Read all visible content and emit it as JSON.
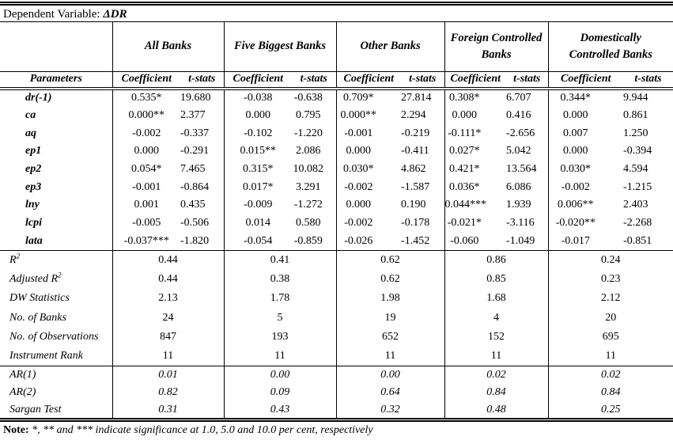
{
  "table": {
    "dependent_variable_label": "Dependent Variable:",
    "dependent_variable": "ΔDR",
    "groups": [
      {
        "label": "All Banks"
      },
      {
        "label": "Five Biggest Banks"
      },
      {
        "label": "Other Banks"
      },
      {
        "label": "Foreign Controlled\nBanks"
      },
      {
        "label": "Domestically\nControlled Banks"
      }
    ],
    "param_header": "Parameters",
    "coef_header": "Coefficient",
    "tstat_header": "t-stats",
    "rows": [
      {
        "param": "dr(-1)",
        "cells": [
          "0.535*",
          "19.680",
          "-0.038",
          "-0.638",
          "0.709*",
          "27.814",
          "0.308*",
          "6.707",
          "0.344*",
          "9.944"
        ]
      },
      {
        "param": "ca",
        "cells": [
          "0.000**",
          "2.377",
          "0.000",
          "0.795",
          "0.000**",
          "2.294",
          "0.000",
          "0.416",
          "0.000",
          "0.861"
        ]
      },
      {
        "param": "aq",
        "cells": [
          "-0.002",
          "-0.337",
          "-0.102",
          "-1.220",
          "-0.001",
          "-0.219",
          "-0.111*",
          "-2.656",
          "0.007",
          "1.250"
        ]
      },
      {
        "param": "ep1",
        "cells": [
          "0.000",
          "-0.291",
          "0.015**",
          "2.086",
          "0.000",
          "-0.411",
          "0.027*",
          "5.042",
          "0.000",
          "-0.394"
        ]
      },
      {
        "param": "ep2",
        "cells": [
          "0.054*",
          "7.465",
          "0.315*",
          "10.082",
          "0.030*",
          "4.862",
          "0.421*",
          "13.564",
          "0.030*",
          "4.594"
        ]
      },
      {
        "param": "ep3",
        "cells": [
          "-0.001",
          "-0.864",
          "0.017*",
          "3.291",
          "-0.002",
          "-1.587",
          "0.036*",
          "6.086",
          "-0.002",
          "-1.215"
        ]
      },
      {
        "param": "lny",
        "cells": [
          "0.001",
          "0.435",
          "-0.009",
          "-1.272",
          "0.000",
          "0.190",
          "0.044***",
          "1.939",
          "0.006**",
          "2.403"
        ]
      },
      {
        "param": "lcpi",
        "cells": [
          "-0.005",
          "-0.506",
          "0.014",
          "0.580",
          "-0.002",
          "-0.178",
          "-0.021*",
          "-3.116",
          "-0.020**",
          "-2.268"
        ]
      },
      {
        "param": "lata",
        "cells": [
          "-0.037***",
          "-1.820",
          "-0.054",
          "-0.859",
          "-0.026",
          "-1.452",
          "-0.060",
          "-1.049",
          "-0.017",
          "-0.851"
        ]
      }
    ],
    "stats": [
      {
        "label": "R",
        "sup": "2",
        "values": [
          "0.44",
          "0.41",
          "0.62",
          "0.86",
          "0.24"
        ]
      },
      {
        "label": "Adjusted R",
        "sup": "2",
        "values": [
          "0.44",
          "0.38",
          "0.62",
          "0.85",
          "0.23"
        ]
      },
      {
        "label": "DW Statistics",
        "values": [
          "2.13",
          "1.78",
          "1.98",
          "1.68",
          "2.12"
        ]
      },
      {
        "label": "No. of Banks",
        "values": [
          "24",
          "5",
          "19",
          "4",
          "20"
        ]
      },
      {
        "label": "No. of Observations",
        "values": [
          "847",
          "193",
          "652",
          "152",
          "695"
        ]
      },
      {
        "label": "Instrument Rank",
        "values": [
          "11",
          "11",
          "11",
          "11",
          "11"
        ]
      }
    ],
    "diagnostics": [
      {
        "label": "AR(1)",
        "values": [
          "0.01",
          "0.00",
          "0.00",
          "0.02",
          "0.02"
        ]
      },
      {
        "label": "AR(2)",
        "values": [
          "0.82",
          "0.09",
          "0.64",
          "0.84",
          "0.84"
        ]
      },
      {
        "label": "Sargan Test",
        "values": [
          "0.31",
          "0.43",
          "0.32",
          "0.48",
          "0.25"
        ]
      }
    ],
    "note_label": "Note:",
    "note_text": "*, ** and *** indicate significance at 1.0, 5.0 and 10.0 per cent, respectively"
  }
}
